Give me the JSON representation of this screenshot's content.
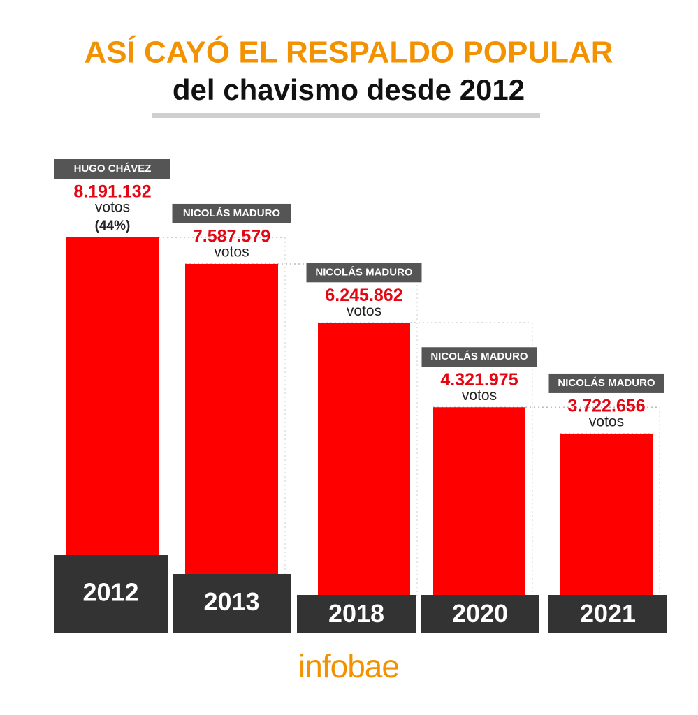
{
  "chart_data": {
    "type": "bar",
    "title": "ASÍ CAYÓ EL RESPALDO POPULAR",
    "subtitle": "del chavismo desde 2012",
    "categories": [
      "2012",
      "2013",
      "2018",
      "2020",
      "2021"
    ],
    "candidates": [
      "HUGO CHÁVEZ",
      "NICOLÁS MADURO",
      "NICOLÁS MADURO",
      "NICOLÁS MADURO",
      "NICOLÁS MADURO"
    ],
    "values": [
      8191132,
      7587579,
      6245862,
      4321975,
      3722656
    ],
    "value_labels": [
      "8.191.132",
      "7.587.579",
      "6.245.862",
      "4.321.975",
      "3.722.656"
    ],
    "unit_label": "votos",
    "annotations": [
      "(44%)"
    ],
    "color": "#ff0000",
    "source": "infobae"
  }
}
